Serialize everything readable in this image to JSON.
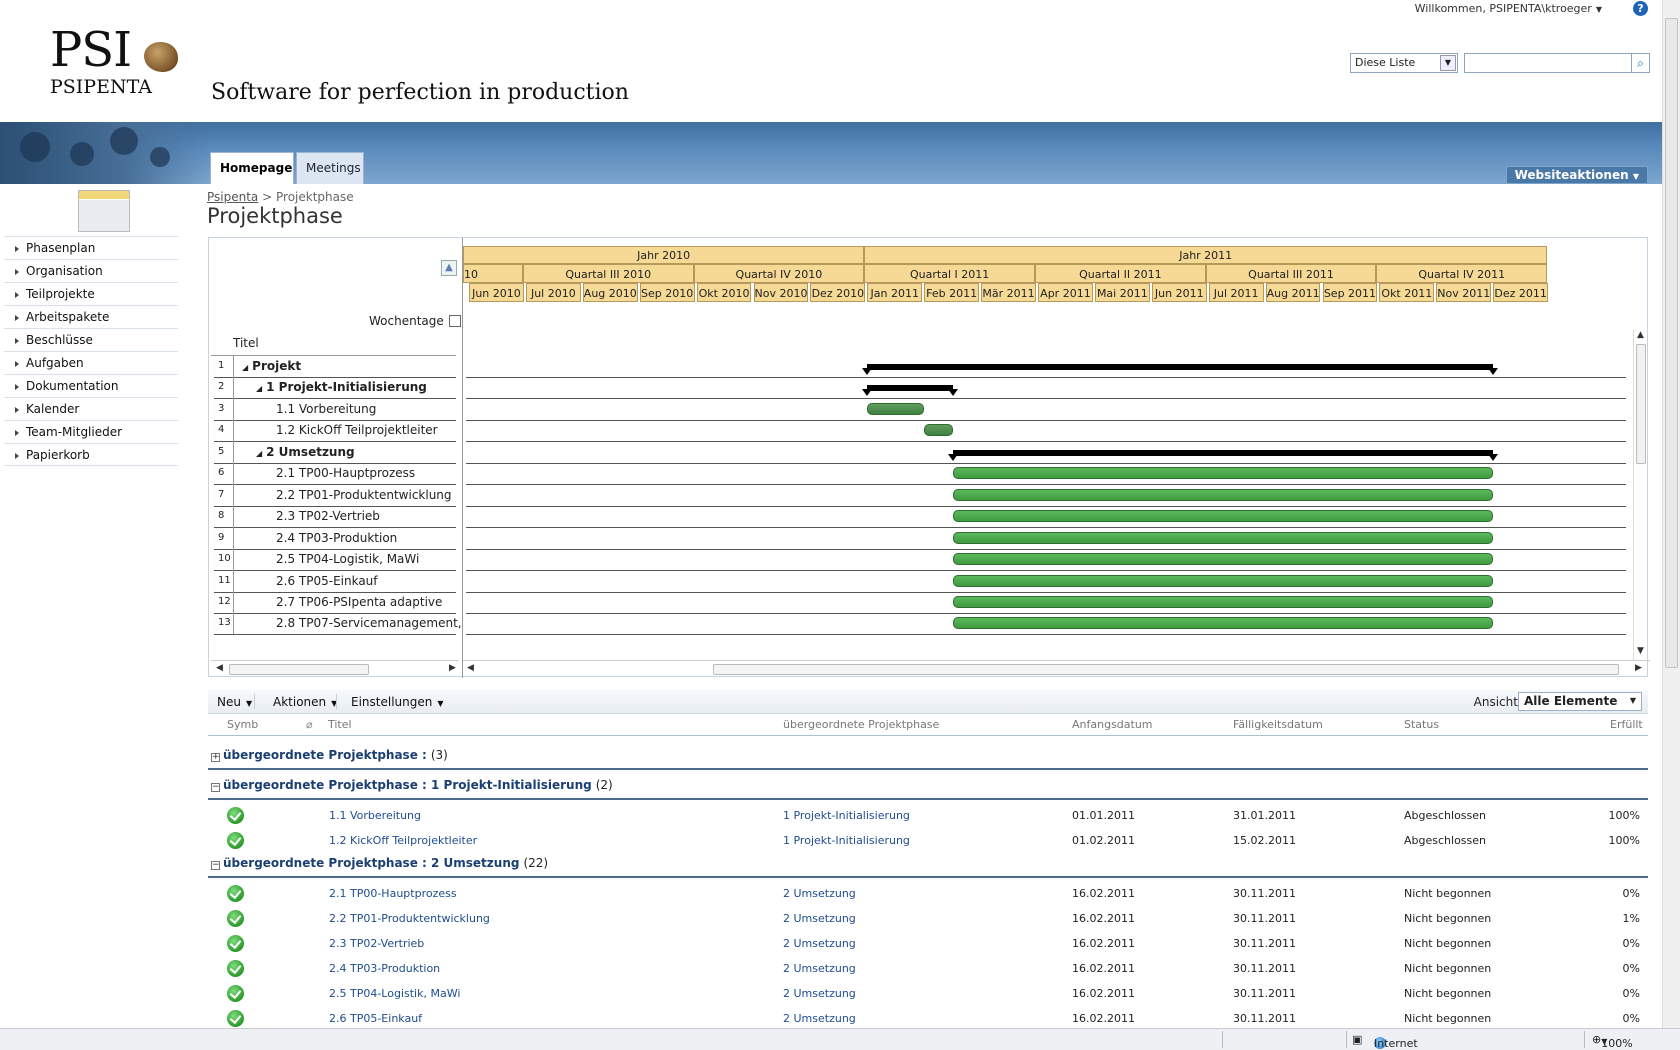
{
  "header": {
    "welcome": "Willkommen, PSIPENTA\\ktroeger",
    "help": "?",
    "logo_main": "PSI",
    "logo_sub": "PSIPENTA",
    "tagline": "Software for perfection in production",
    "search_scope": "Diese Liste",
    "search_placeholder": ""
  },
  "tabs": [
    "Homepage",
    "Meetings"
  ],
  "site_actions": "Websiteaktionen",
  "nav": [
    "Phasenplan",
    "Organisation",
    "Teilprojekte",
    "Arbeitspakete",
    "Beschlüsse",
    "Aufgaben",
    "Dokumentation",
    "Kalender",
    "Team-Mitglieder",
    "Papierkorb"
  ],
  "breadcrumb": {
    "root": "Psipenta",
    "sep": ">",
    "current": "Projektphase"
  },
  "page_title": "Projektphase",
  "gantt": {
    "wochentage": "Wochentage",
    "title_header": "Titel",
    "years": [
      "Jahr 2010",
      "Jahr 2011"
    ],
    "quarters": [
      "10",
      "Quartal III 2010",
      "Quartal IV 2010",
      "Quartal I 2011",
      "Quartal II 2011",
      "Quartal III 2011",
      "Quartal IV 2011"
    ],
    "months": [
      "Jun 2010",
      "Jul 2010",
      "Aug 2010",
      "Sep 2010",
      "Okt 2010",
      "Nov 2010",
      "Dez 2010",
      "Jan 2011",
      "Feb 2011",
      "Mär 2011",
      "Apr 2011",
      "Mai 2011",
      "Jun 2011",
      "Jul 2011",
      "Aug 2011",
      "Sep 2011",
      "Okt 2011",
      "Nov 2011",
      "Dez 2011"
    ],
    "rows": [
      {
        "num": "1",
        "label": "Projekt",
        "level": 0,
        "bold": true,
        "summary": true
      },
      {
        "num": "2",
        "label": "1 Projekt-Initialisierung",
        "level": 1,
        "bold": true,
        "summary": true
      },
      {
        "num": "3",
        "label": "1.1 Vorbereitung",
        "level": 2,
        "bold": false
      },
      {
        "num": "4",
        "label": "1.2 KickOff Teilprojektleiter",
        "level": 2,
        "bold": false
      },
      {
        "num": "5",
        "label": "2 Umsetzung",
        "level": 1,
        "bold": true,
        "summary": true
      },
      {
        "num": "6",
        "label": "2.1 TP00-Hauptprozess",
        "level": 2,
        "bold": false
      },
      {
        "num": "7",
        "label": "2.2 TP01-Produktentwicklung",
        "level": 2,
        "bold": false
      },
      {
        "num": "8",
        "label": "2.3 TP02-Vertrieb",
        "level": 2,
        "bold": false
      },
      {
        "num": "9",
        "label": "2.4 TP03-Produktion",
        "level": 2,
        "bold": false
      },
      {
        "num": "10",
        "label": "2.5 TP04-Logistik, MaWi",
        "level": 2,
        "bold": false
      },
      {
        "num": "11",
        "label": "2.6 TP05-Einkauf",
        "level": 2,
        "bold": false
      },
      {
        "num": "12",
        "label": "2.7 TP06-PSIpenta adaptive",
        "level": 2,
        "bold": false
      },
      {
        "num": "13",
        "label": "2.8 TP07-Servicemanagement,",
        "level": 2,
        "bold": false
      }
    ]
  },
  "toolbar": {
    "neu": "Neu",
    "aktionen": "Aktionen",
    "einstellungen": "Einstellungen",
    "ansicht_label": "Ansicht:",
    "ansicht_value": "Alle Elemente"
  },
  "list": {
    "columns": {
      "symb": "Symb",
      "titel": "Titel",
      "parent": "übergeordnete Projektphase",
      "start": "Anfangsdatum",
      "due": "Fälligkeitsdatum",
      "status": "Status",
      "done": "Erfüllt"
    },
    "groups": [
      {
        "label": "übergeordnete Projektphase :",
        "count": "(3)",
        "collapsed": true,
        "items": []
      },
      {
        "label": "übergeordnete Projektphase : 1 Projekt-Initialisierung",
        "count": "(2)",
        "collapsed": false,
        "items": [
          {
            "title": "1.1 Vorbereitung",
            "parent": "1 Projekt-Initialisierung",
            "start": "01.01.2011",
            "due": "31.01.2011",
            "status": "Abgeschlossen",
            "done": "100%"
          },
          {
            "title": "1.2 KickOff Teilprojektleiter",
            "parent": "1 Projekt-Initialisierung",
            "start": "01.02.2011",
            "due": "15.02.2011",
            "status": "Abgeschlossen",
            "done": "100%"
          }
        ]
      },
      {
        "label": "übergeordnete Projektphase : 2 Umsetzung",
        "count": "(22)",
        "collapsed": false,
        "items": [
          {
            "title": "2.1 TP00-Hauptprozess",
            "parent": "2 Umsetzung",
            "start": "16.02.2011",
            "due": "30.11.2011",
            "status": "Nicht begonnen",
            "done": "0%"
          },
          {
            "title": "2.2 TP01-Produktentwicklung",
            "parent": "2 Umsetzung",
            "start": "16.02.2011",
            "due": "30.11.2011",
            "status": "Nicht begonnen",
            "done": "1%"
          },
          {
            "title": "2.3 TP02-Vertrieb",
            "parent": "2 Umsetzung",
            "start": "16.02.2011",
            "due": "30.11.2011",
            "status": "Nicht begonnen",
            "done": "0%"
          },
          {
            "title": "2.4 TP03-Produktion",
            "parent": "2 Umsetzung",
            "start": "16.02.2011",
            "due": "30.11.2011",
            "status": "Nicht begonnen",
            "done": "0%"
          },
          {
            "title": "2.5 TP04-Logistik, MaWi",
            "parent": "2 Umsetzung",
            "start": "16.02.2011",
            "due": "30.11.2011",
            "status": "Nicht begonnen",
            "done": "0%"
          },
          {
            "title": "2.6 TP05-Einkauf",
            "parent": "2 Umsetzung",
            "start": "16.02.2011",
            "due": "30.11.2011",
            "status": "Nicht begonnen",
            "done": "0%"
          }
        ]
      }
    ]
  },
  "statusbar": {
    "zone": "Internet",
    "zoom": "100%"
  }
}
